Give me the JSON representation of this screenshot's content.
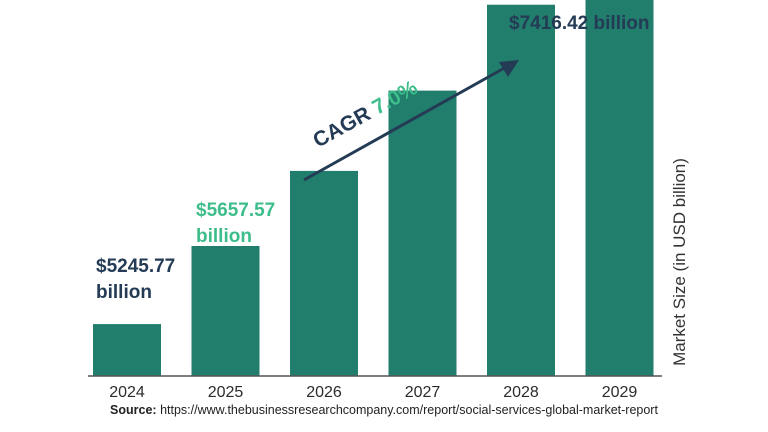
{
  "chart_data": {
    "type": "bar",
    "categories": [
      "2024",
      "2025",
      "2026",
      "2027",
      "2028",
      "2029"
    ],
    "values": [
      5245.77,
      5657.57,
      6053.6,
      6477.4,
      6930.8,
      7416.42
    ],
    "ylabel": "Market Size (in USD billion)",
    "bar_color": "#217d6c",
    "annotations": [
      {
        "category": "2024",
        "line1": "$5245.77",
        "line2": "billion",
        "color": "#243b55"
      },
      {
        "category": "2025",
        "line1": "$5657.57",
        "line2": "billion",
        "color": "#3dbd8a"
      },
      {
        "category": "2029",
        "line1": "$7416.42 billion",
        "line2": "",
        "color": "#243b55"
      }
    ],
    "cagr": {
      "label": "CAGR",
      "value": "7.0%"
    }
  },
  "source": {
    "label": "Source:",
    "url": "https://www.thebusinessresearchcompany.com/report/social-services-global-market-report"
  }
}
